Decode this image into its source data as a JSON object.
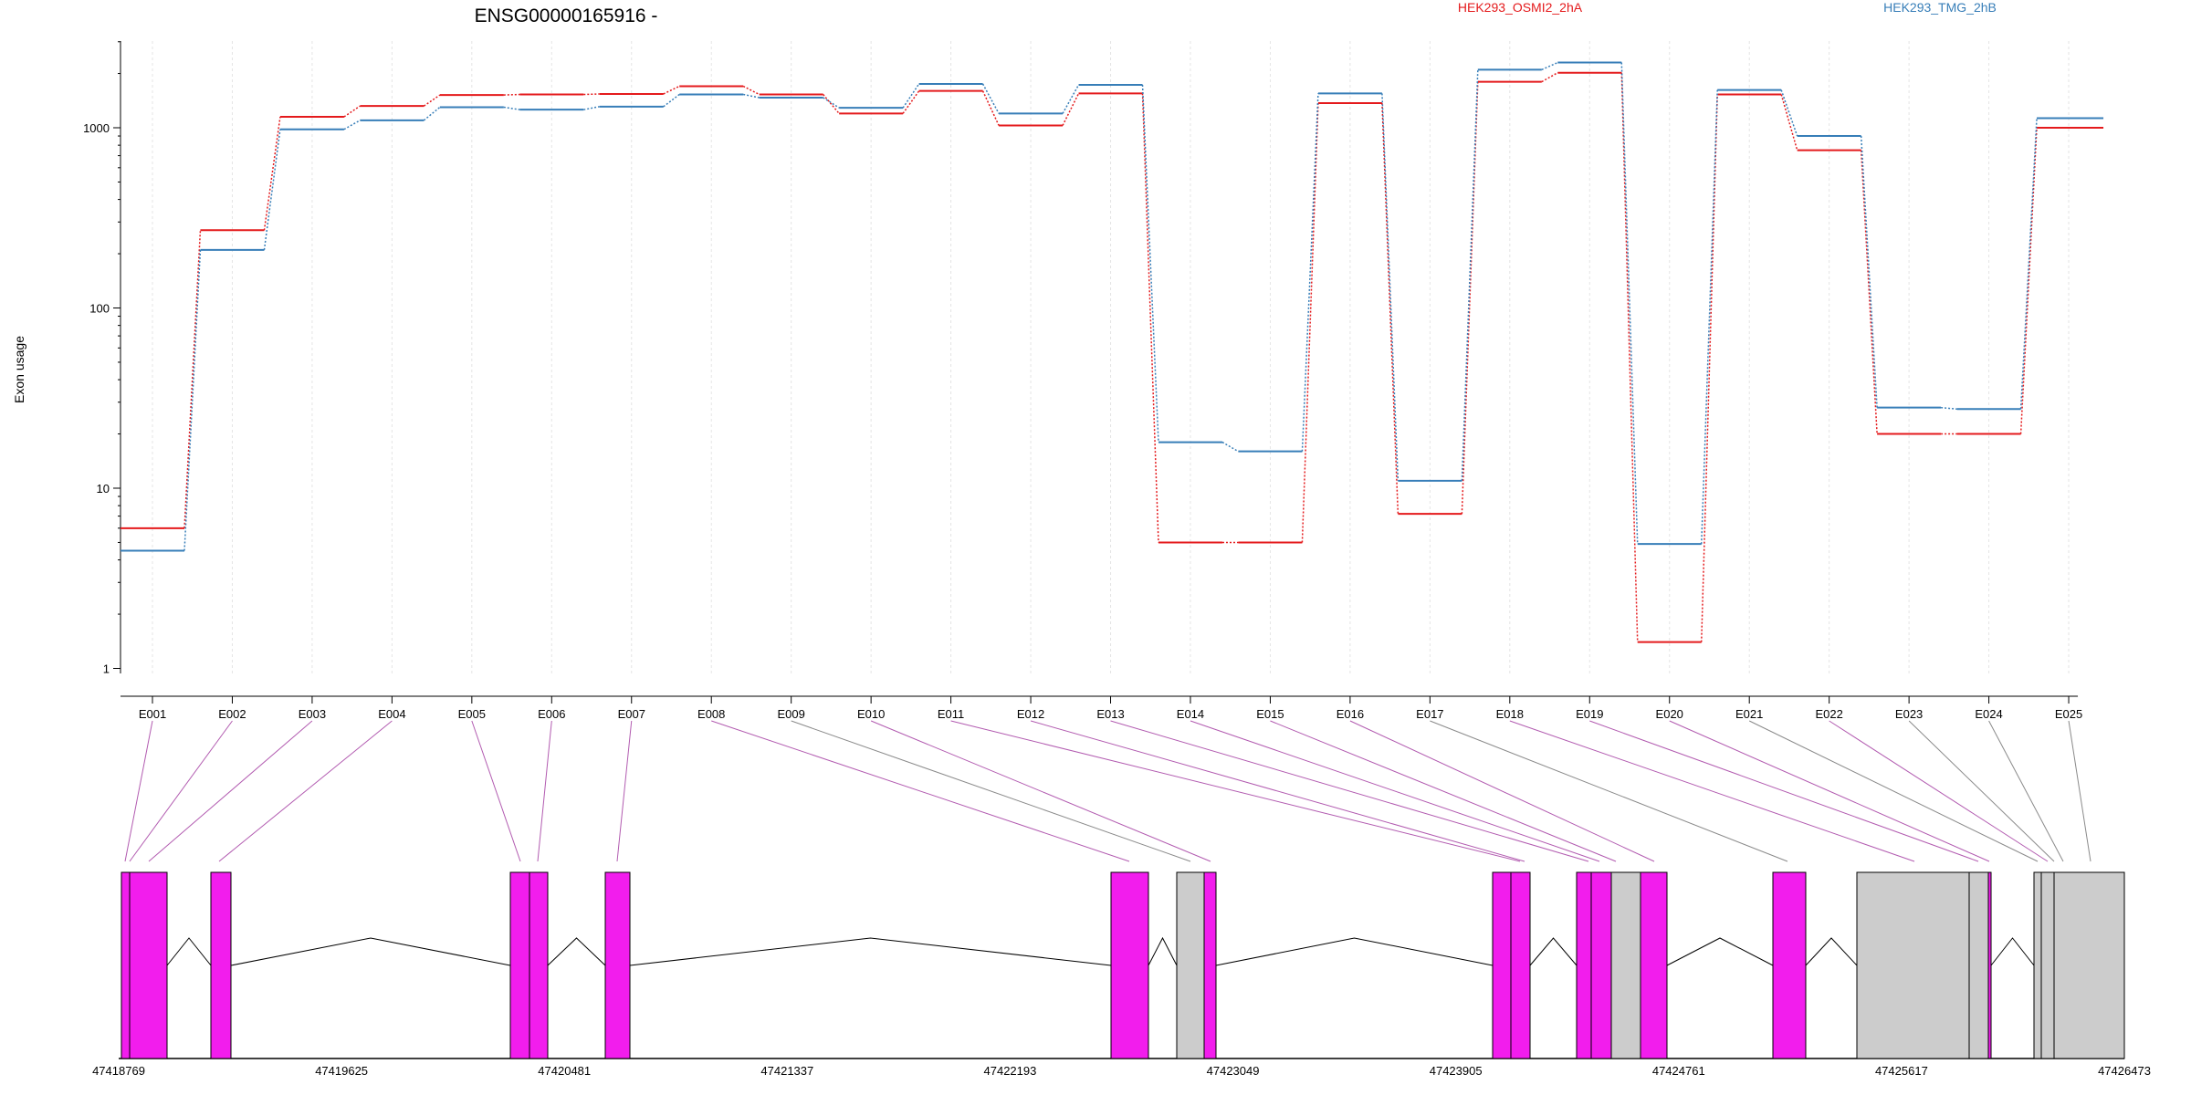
{
  "chart_data": {
    "type": "line",
    "title": "ENSG00000165916 -",
    "ylabel": "Exon usage",
    "xlabel": "",
    "y_scale": "log",
    "ylim": [
      0.45,
      3200
    ],
    "y_ticks": [
      1,
      10,
      100,
      1000
    ],
    "y_tick_labels": [
      "1",
      "10",
      "100",
      "1000"
    ],
    "grid": "vertical",
    "legend_placement": "top",
    "categories": [
      "E001",
      "E002",
      "E003",
      "E004",
      "E005",
      "E006",
      "E007",
      "E008",
      "E009",
      "E010",
      "E011",
      "E012",
      "E013",
      "E014",
      "E015",
      "E016",
      "E017",
      "E018",
      "E019",
      "E020",
      "E021",
      "E022",
      "E023",
      "E024",
      "E025"
    ],
    "series": [
      {
        "name": "HEK293_OSMI2_2hA",
        "color": "#e41a1c",
        "values": [
          6,
          270,
          1150,
          1320,
          1520,
          1530,
          1540,
          1700,
          1530,
          1200,
          1600,
          1030,
          1550,
          5,
          5,
          1370,
          7.2,
          1800,
          2020,
          1.4,
          1530,
          750,
          20,
          20,
          1000
        ]
      },
      {
        "name": "HEK293_TMG_2hB",
        "color": "#377eb8",
        "values": [
          4.5,
          210,
          980,
          1100,
          1300,
          1260,
          1310,
          1530,
          1470,
          1290,
          1750,
          1200,
          1730,
          18,
          16,
          1550,
          11,
          2100,
          2300,
          4.9,
          1620,
          900,
          28,
          27.5,
          1130
        ]
      }
    ],
    "gene_model": {
      "coord_range": [
        47418769,
        47426473
      ],
      "coord_labels": [
        "47418769",
        "47419625",
        "47420481",
        "47421337",
        "47422193",
        "47423049",
        "47423905",
        "47424761",
        "47425617",
        "47426473"
      ],
      "feature_colors": {
        "tested": "#f21ded",
        "untested": "#cccccc"
      },
      "exon_status": [
        "tested",
        "tested",
        "tested",
        "tested",
        "tested",
        "tested",
        "tested",
        "tested",
        "untested",
        "tested",
        "tested",
        "tested",
        "tested",
        "tested",
        "tested",
        "tested",
        "untested",
        "tested",
        "tested",
        "tested",
        "untested",
        "tested",
        "untested",
        "untested",
        "untested"
      ]
    }
  }
}
